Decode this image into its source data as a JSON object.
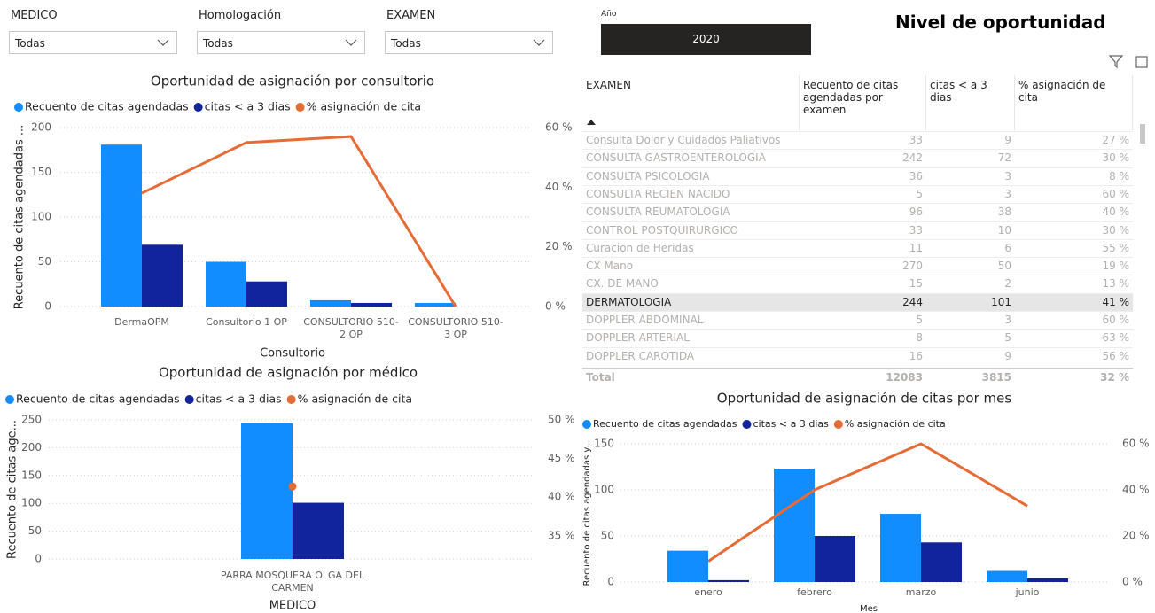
{
  "filters": [
    {
      "label": "MEDICO",
      "value": "Todas"
    },
    {
      "label": "Homologación",
      "value": "Todas"
    },
    {
      "label": "EXAMEN",
      "value": "Todas"
    }
  ],
  "year": {
    "label": "Año",
    "value": "2020"
  },
  "page_title": "Nivel de oportunidad",
  "table": {
    "columns": [
      "EXAMEN",
      "Recuento de citas agendadas por examen",
      "citas < a 3 dias",
      "% asignación de cita"
    ],
    "rows": [
      [
        "Consulta Dolor y Cuidados Paliativos",
        "33",
        "9",
        "27 %"
      ],
      [
        "CONSULTA GASTROENTEROLOGIA",
        "242",
        "72",
        "30 %"
      ],
      [
        "CONSULTA PSICOLOGIA",
        "36",
        "3",
        "8 %"
      ],
      [
        "CONSULTA RECIEN NACIDO",
        "5",
        "3",
        "60 %"
      ],
      [
        "CONSULTA REUMATOLOGIA",
        "96",
        "38",
        "40 %"
      ],
      [
        "CONTROL POSTQUIRURGICO",
        "33",
        "10",
        "30 %"
      ],
      [
        "Curacion de Heridas",
        "11",
        "6",
        "55 %"
      ],
      [
        "CX Mano",
        "270",
        "50",
        "19 %"
      ],
      [
        "CX. DE MANO",
        "15",
        "2",
        "13 %"
      ],
      [
        "DERMATOLOGIA",
        "244",
        "101",
        "41 %"
      ],
      [
        "DOPPLER ABDOMINAL",
        "5",
        "3",
        "60 %"
      ],
      [
        "DOPPLER ARTERIAL",
        "8",
        "5",
        "63 %"
      ],
      [
        "DOPPLER CAROTIDA",
        "16",
        "9",
        "56 %"
      ]
    ],
    "total": [
      "Total",
      "12083",
      "3815",
      "32 %"
    ]
  },
  "chart_data": [
    {
      "type": "combo",
      "title": "Oportunidad de asignación por consultorio",
      "x_label": "Consultorio",
      "y_label": "Recuento de citas agendadas ...",
      "categories": [
        "DermaOPM",
        "Consultorio 1 OP",
        "CONSULTORIO 510-2 OP",
        "CONSULTORIO 510-3 OP"
      ],
      "series": [
        {
          "name": "Recuento de citas agendadas",
          "color": "#118dff",
          "values": [
            181,
            50,
            7,
            4
          ]
        },
        {
          "name": "citas < a 3 dias",
          "color": "#12239e",
          "values": [
            69,
            28,
            4,
            0
          ]
        },
        {
          "name": "% asignación de cita",
          "color": "#e66c37",
          "axis": "y2",
          "values": [
            38,
            55,
            57,
            0
          ]
        }
      ],
      "ylim": [
        0,
        200
      ],
      "yticks": [
        0,
        50,
        100,
        150,
        200
      ],
      "y2lim": [
        0,
        60
      ],
      "y2ticks": [
        {
          "value": 0,
          "label": "0 %"
        },
        {
          "value": 20,
          "label": "20 %"
        },
        {
          "value": 40,
          "label": "40 %"
        },
        {
          "value": 60,
          "label": "60 %"
        }
      ],
      "grid": true
    },
    {
      "type": "combo",
      "title": "Oportunidad de asignación por médico",
      "x_label": "MEDICO",
      "y_label": "Recuento de citas age...",
      "categories": [
        "PARRA MOSQUERA OLGA DEL CARMEN"
      ],
      "series": [
        {
          "name": "Recuento de citas agendadas",
          "color": "#118dff",
          "values": [
            244
          ]
        },
        {
          "name": "citas < a 3 dias",
          "color": "#12239e",
          "values": [
            101
          ]
        },
        {
          "name": "% asignación de cita",
          "color": "#e66c37",
          "axis": "y2",
          "values": [
            41.4
          ]
        }
      ],
      "ylim": [
        0,
        250
      ],
      "yticks": [
        0,
        50,
        100,
        150,
        200,
        250
      ],
      "y2lim": [
        32,
        50
      ],
      "y2ticks": [
        {
          "value": 35,
          "label": "35 %"
        },
        {
          "value": 40,
          "label": "40 %"
        },
        {
          "value": 45,
          "label": "45 %"
        },
        {
          "value": 50,
          "label": "50 %"
        }
      ],
      "grid": true
    },
    {
      "type": "combo",
      "title": "Oportunidad de asignación de citas por mes",
      "x_label": "Mes",
      "y_label": "Recuento de citas agendadas y...",
      "categories": [
        "enero",
        "febrero",
        "marzo",
        "junio"
      ],
      "series": [
        {
          "name": "Recuento de citas agendadas",
          "color": "#118dff",
          "values": [
            34,
            123,
            74,
            12
          ]
        },
        {
          "name": "citas < a 3 dias",
          "color": "#12239e",
          "values": [
            2,
            50,
            43,
            4
          ]
        },
        {
          "name": "% asignación de cita",
          "color": "#e66c37",
          "axis": "y2",
          "values": [
            9,
            40,
            60,
            33
          ]
        }
      ],
      "ylim": [
        0,
        150
      ],
      "yticks": [
        0,
        50,
        100,
        150
      ],
      "y2lim": [
        0,
        60
      ],
      "y2ticks": [
        {
          "value": 0,
          "label": "0 %"
        },
        {
          "value": 20,
          "label": "20 %"
        },
        {
          "value": 40,
          "label": "40 %"
        },
        {
          "value": 60,
          "label": "60 %"
        }
      ],
      "grid": true
    }
  ]
}
